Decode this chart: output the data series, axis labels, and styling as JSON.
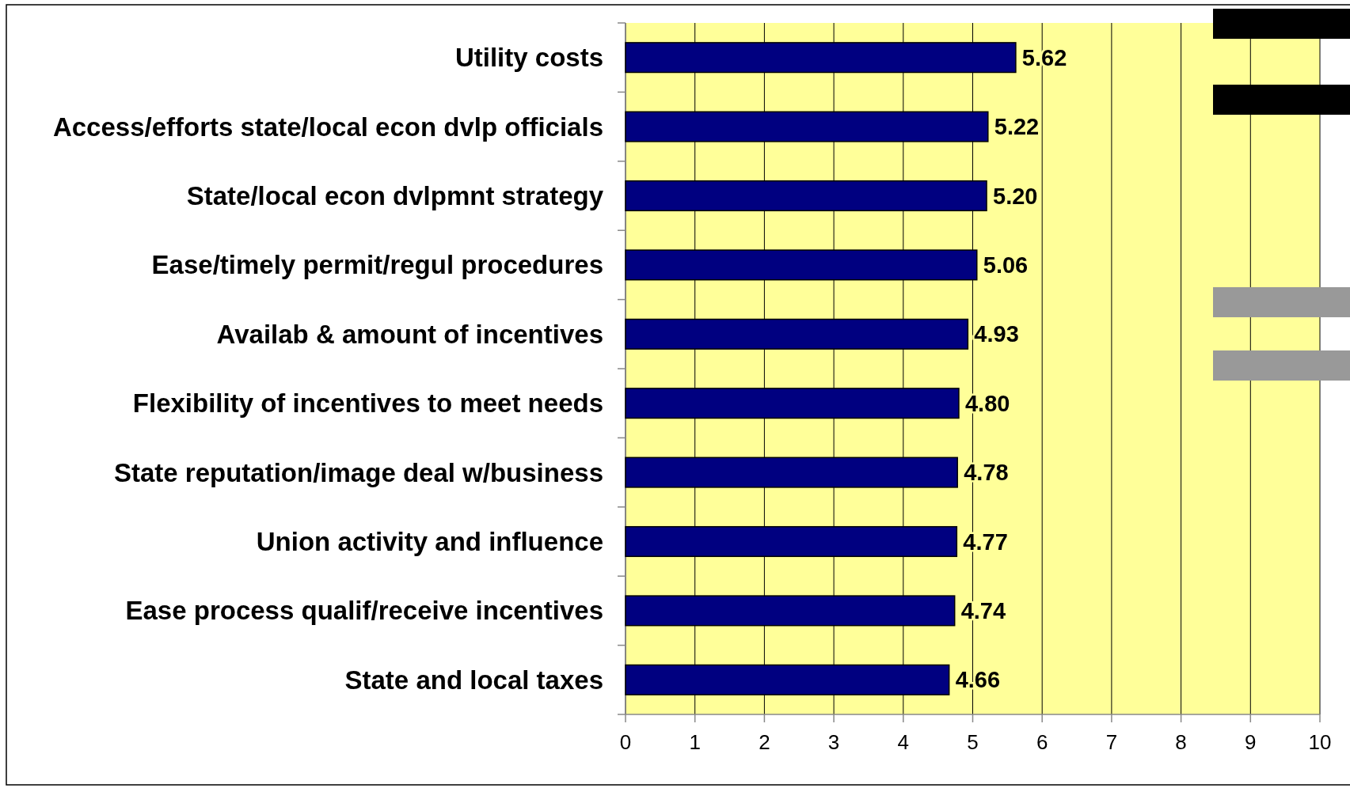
{
  "chart_data": {
    "type": "bar",
    "orientation": "horizontal",
    "categories": [
      "Utility costs",
      "Access/efforts state/local econ dvlp officials",
      "State/local econ dvlpmnt strategy",
      "Ease/timely permit/regul procedures",
      "Availab & amount of incentives",
      "Flexibility of incentives to meet needs",
      "State reputation/image deal w/business",
      "Union activity and influence",
      "Ease process qualif/receive incentives",
      "State and local taxes"
    ],
    "values": [
      5.62,
      5.22,
      5.2,
      5.06,
      4.93,
      4.8,
      4.78,
      4.77,
      4.74,
      4.66
    ],
    "value_labels": [
      "5.62",
      "5.22",
      "5.20",
      "5.06",
      "4.93",
      "4.80",
      "4.78",
      "4.77",
      "4.74",
      "4.66"
    ],
    "color": "#000080",
    "xlim": [
      0,
      10
    ],
    "xticks": [
      0,
      1,
      2,
      3,
      4,
      5,
      6,
      7,
      8,
      9,
      10
    ],
    "grid": "x"
  }
}
